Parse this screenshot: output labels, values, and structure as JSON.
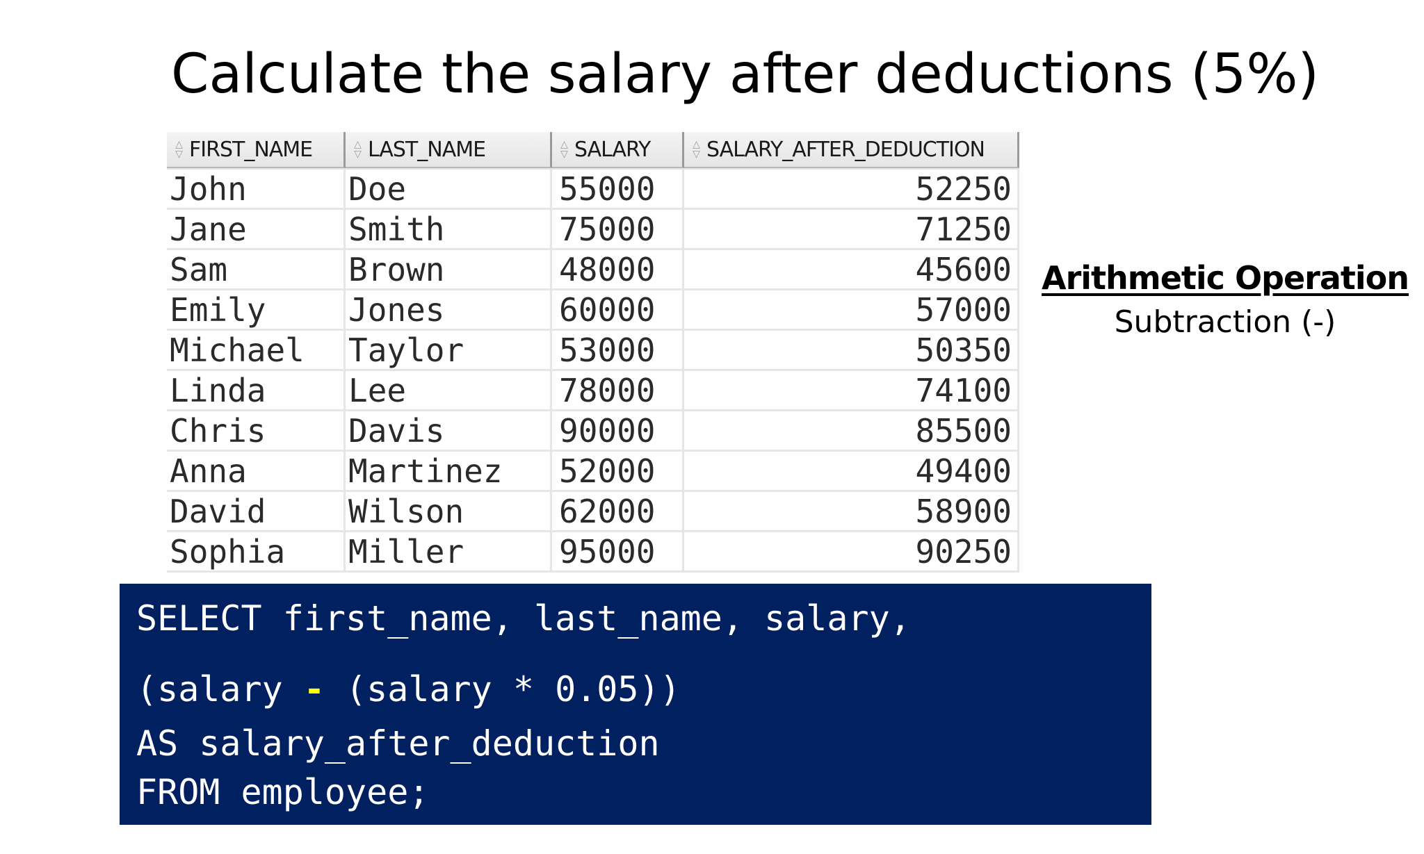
{
  "title": "Calculate the salary after deductions (5%)",
  "grid": {
    "columns": [
      "FIRST_NAME",
      "LAST_NAME",
      "SALARY",
      "SALARY_AFTER_DEDUCTION"
    ],
    "rows": [
      [
        "John",
        "Doe",
        "55000",
        "52250"
      ],
      [
        "Jane",
        "Smith",
        "75000",
        "71250"
      ],
      [
        "Sam",
        "Brown",
        "48000",
        "45600"
      ],
      [
        "Emily",
        "Jones",
        "60000",
        "57000"
      ],
      [
        "Michael",
        "Taylor",
        "53000",
        "50350"
      ],
      [
        "Linda",
        "Lee",
        "78000",
        "74100"
      ],
      [
        "Chris",
        "Davis",
        "90000",
        "85500"
      ],
      [
        "Anna",
        "Martinez",
        "52000",
        "49400"
      ],
      [
        "David",
        "Wilson",
        "62000",
        "58900"
      ],
      [
        "Sophia",
        "Miller",
        "95000",
        "90250"
      ]
    ]
  },
  "operation": {
    "heading": "Arithmetic Operation",
    "subtitle": "Subtraction (-)"
  },
  "sql": {
    "line1": "SELECT first_name, last_name, salary,",
    "line2_before": "(salary ",
    "line2_operator": "-",
    "line2_after": " (salary * 0.05))",
    "line3": "AS salary_after_deduction",
    "line4": "FROM employee;"
  },
  "colors": {
    "sql_background": "#002060",
    "sql_text": "#ffffff",
    "operator_highlight": "#ffff00"
  },
  "icons": {
    "column_sort": "sort-updown-icon"
  }
}
